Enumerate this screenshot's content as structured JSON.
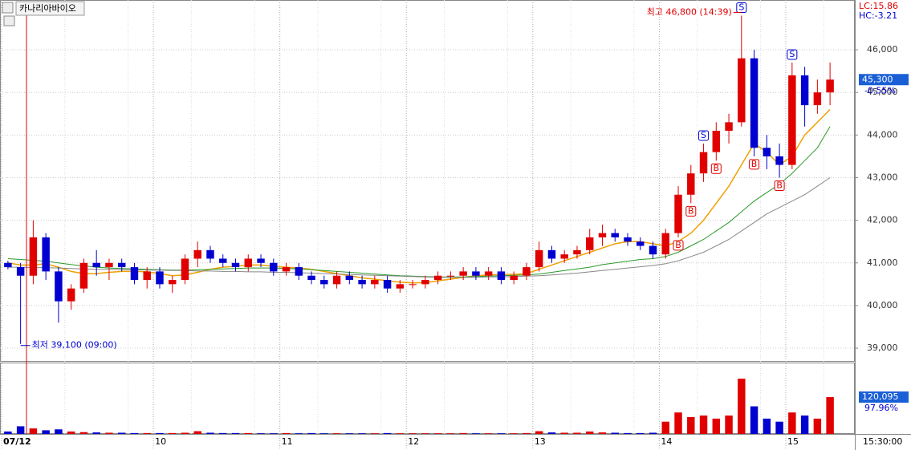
{
  "stock_name": "카나리아바이오",
  "chart_data": {
    "type": "candlestick",
    "categories": [
      "07/12",
      null,
      null,
      null,
      null,
      null,
      null,
      null,
      null,
      null,
      null,
      null,
      "10",
      null,
      null,
      null,
      null,
      null,
      null,
      null,
      null,
      null,
      "11",
      null,
      null,
      null,
      null,
      null,
      null,
      null,
      null,
      null,
      "12",
      null,
      null,
      null,
      null,
      null,
      null,
      null,
      null,
      null,
      "13",
      null,
      null,
      null,
      null,
      null,
      null,
      null,
      null,
      null,
      "14",
      null,
      null,
      null,
      null,
      null,
      null,
      null,
      null,
      null,
      "15",
      null,
      null,
      null
    ],
    "open": [
      41000,
      40900,
      40700,
      41600,
      40800,
      40100,
      40400,
      41000,
      40900,
      41000,
      40900,
      40600,
      40800,
      40500,
      40600,
      41100,
      41300,
      41100,
      41000,
      40900,
      41100,
      41000,
      40800,
      40900,
      40700,
      40600,
      40500,
      40700,
      40600,
      40500,
      40600,
      40400,
      40500,
      40500,
      40600,
      40700,
      40700,
      40800,
      40700,
      40800,
      40600,
      40700,
      40900,
      41300,
      41100,
      41200,
      41300,
      41600,
      41700,
      41600,
      41500,
      41400,
      41200,
      41700,
      42600,
      43100,
      43600,
      44100,
      44300,
      45800,
      43700,
      43500,
      43300,
      45400,
      44700,
      45000
    ],
    "high": [
      41050,
      41000,
      42000,
      41700,
      40900,
      40500,
      41100,
      41300,
      41100,
      41100,
      41000,
      40900,
      40900,
      40700,
      41200,
      41500,
      41400,
      41200,
      41100,
      41200,
      41200,
      41100,
      41000,
      41000,
      40800,
      40700,
      40800,
      40800,
      40700,
      40700,
      40700,
      40600,
      40600,
      40700,
      40800,
      40800,
      40900,
      40900,
      40900,
      40900,
      40800,
      41000,
      41500,
      41400,
      41300,
      41400,
      41800,
      41900,
      41800,
      41700,
      41600,
      41500,
      41800,
      42800,
      43300,
      43800,
      44300,
      44500,
      46800,
      46000,
      44000,
      43800,
      45700,
      45600,
      45300,
      45700
    ],
    "low": [
      40850,
      39100,
      40500,
      40600,
      39600,
      39900,
      40300,
      40700,
      40600,
      40800,
      40500,
      40400,
      40400,
      40300,
      40500,
      40900,
      41000,
      40900,
      40800,
      40800,
      40900,
      40700,
      40700,
      40600,
      40500,
      40400,
      40400,
      40500,
      40400,
      40400,
      40300,
      40300,
      40400,
      40400,
      40500,
      40600,
      40600,
      40600,
      40600,
      40500,
      40500,
      40600,
      40800,
      41000,
      41000,
      41100,
      41200,
      41400,
      41500,
      41400,
      41300,
      41100,
      41100,
      41600,
      42400,
      42900,
      43400,
      43800,
      44200,
      43500,
      43200,
      43000,
      43200,
      44200,
      44500,
      44700
    ],
    "close": [
      40900,
      40700,
      41600,
      40800,
      40100,
      40400,
      41000,
      40900,
      41000,
      40900,
      40600,
      40800,
      40500,
      40600,
      41100,
      41300,
      41100,
      41000,
      40900,
      41100,
      41000,
      40800,
      40900,
      40700,
      40600,
      40500,
      40700,
      40600,
      40500,
      40600,
      40400,
      40500,
      40500,
      40600,
      40700,
      40700,
      40800,
      40700,
      40800,
      40600,
      40700,
      40900,
      41300,
      41100,
      41200,
      41300,
      41600,
      41700,
      41600,
      41500,
      41400,
      41200,
      41700,
      42600,
      43100,
      43600,
      44100,
      44300,
      45800,
      43700,
      43500,
      43300,
      45400,
      44700,
      45000,
      45300
    ],
    "volume": [
      8000,
      25000,
      18000,
      12000,
      15000,
      8000,
      6000,
      5000,
      4000,
      4000,
      3000,
      3000,
      3000,
      3000,
      4000,
      9000,
      4000,
      3000,
      3000,
      3000,
      2000,
      2000,
      3000,
      2000,
      3000,
      2000,
      2000,
      2000,
      2000,
      2000,
      3000,
      2000,
      2000,
      2000,
      2000,
      2000,
      3000,
      2000,
      2000,
      2000,
      2000,
      3000,
      9000,
      5000,
      4000,
      4000,
      8000,
      5000,
      4000,
      3000,
      3000,
      4000,
      40000,
      70000,
      55000,
      60000,
      50000,
      60000,
      180000,
      90000,
      50000,
      40000,
      70000,
      60000,
      50000,
      120095
    ],
    "signals": [
      null,
      null,
      null,
      null,
      null,
      null,
      null,
      null,
      null,
      null,
      null,
      null,
      null,
      null,
      null,
      null,
      null,
      null,
      null,
      null,
      null,
      null,
      null,
      null,
      null,
      null,
      null,
      null,
      null,
      null,
      null,
      null,
      null,
      null,
      null,
      null,
      null,
      null,
      null,
      null,
      null,
      null,
      null,
      null,
      null,
      null,
      null,
      null,
      null,
      null,
      null,
      null,
      null,
      "B",
      "B",
      "S",
      "B",
      null,
      "S",
      "B",
      null,
      "B",
      "S",
      null,
      null,
      null
    ],
    "series": [
      {
        "color": "#f0a000",
        "values": [
          41000,
          40950,
          40950,
          40980,
          40900,
          40800,
          40750,
          40750,
          40780,
          40800,
          40800,
          40790,
          40750,
          40700,
          40720,
          40780,
          40850,
          40900,
          40920,
          40950,
          40950,
          40920,
          40900,
          40880,
          40850,
          40800,
          40750,
          40700,
          40650,
          40620,
          40580,
          40550,
          40530,
          40540,
          40580,
          40620,
          40660,
          40700,
          40720,
          40730,
          40730,
          40750,
          40850,
          40950,
          41050,
          41150,
          41250,
          41350,
          41450,
          41500,
          41500,
          41450,
          41400,
          41500,
          41700,
          42000,
          42400,
          42800,
          43300,
          43800,
          43600,
          43300,
          43500,
          44000,
          44300,
          44600
        ]
      },
      {
        "color": "#2a9a2a",
        "values": [
          41100,
          41080,
          41060,
          41040,
          41000,
          40960,
          40930,
          40900,
          40880,
          40870,
          40860,
          40850,
          40840,
          40830,
          40830,
          40840,
          40850,
          40860,
          40870,
          40880,
          40880,
          40880,
          40870,
          40860,
          40840,
          40820,
          40800,
          40780,
          40760,
          40740,
          40720,
          40700,
          40690,
          40680,
          40670,
          40670,
          40670,
          40680,
          40690,
          40700,
          40710,
          40720,
          40740,
          40780,
          40820,
          40860,
          40900,
          40960,
          41000,
          41040,
          41080,
          41100,
          41150,
          41250,
          41400,
          41550,
          41750,
          41950,
          42200,
          42450,
          42650,
          42850,
          43100,
          43400,
          43700,
          44200
        ]
      },
      {
        "color": "#888888",
        "values": [
          40900,
          40900,
          40890,
          40890,
          40880,
          40870,
          40860,
          40850,
          40850,
          40840,
          40840,
          40830,
          40830,
          40820,
          40820,
          40810,
          40810,
          40800,
          40800,
          40790,
          40790,
          40780,
          40780,
          40770,
          40760,
          40750,
          40740,
          40730,
          40720,
          40710,
          40700,
          40690,
          40680,
          40670,
          40660,
          40660,
          40660,
          40660,
          40670,
          40670,
          40680,
          40690,
          40700,
          40720,
          40740,
          40760,
          40790,
          40820,
          40850,
          40880,
          40910,
          40940,
          40980,
          41050,
          41150,
          41250,
          41400,
          41550,
          41750,
          41950,
          42150,
          42300,
          42450,
          42600,
          42800,
          43000
        ]
      }
    ],
    "up_color": "#e00000",
    "down_color": "#0000d0",
    "ylim": [
      38700,
      47130
    ],
    "yticks": [
      {
        "value": 39000,
        "label": "39,000"
      },
      {
        "value": 40000,
        "label": "40,000"
      },
      {
        "value": 41000,
        "label": "41,000"
      },
      {
        "value": 42000,
        "label": "42,000"
      },
      {
        "value": 43000,
        "label": "43,000"
      },
      {
        "value": 44000,
        "label": "44,000"
      },
      {
        "value": 45000,
        "label": "45,000"
      },
      {
        "value": 46000,
        "label": "46,000"
      }
    ],
    "volume_ylim": [
      0,
      230000
    ],
    "high_label": "최고 46,800 (14:39)",
    "low_label": "최저 39,100 (09:00)",
    "lc": "LC:15.86",
    "hc": "HC:-3.21",
    "last_price": {
      "value": 45300,
      "label": "45,300"
    },
    "change": "-0.55%",
    "last_volume": {
      "value": 120095,
      "label": "120,095"
    },
    "volume_pct": "97.96%",
    "time_label": "15:30:00",
    "grid": true
  }
}
